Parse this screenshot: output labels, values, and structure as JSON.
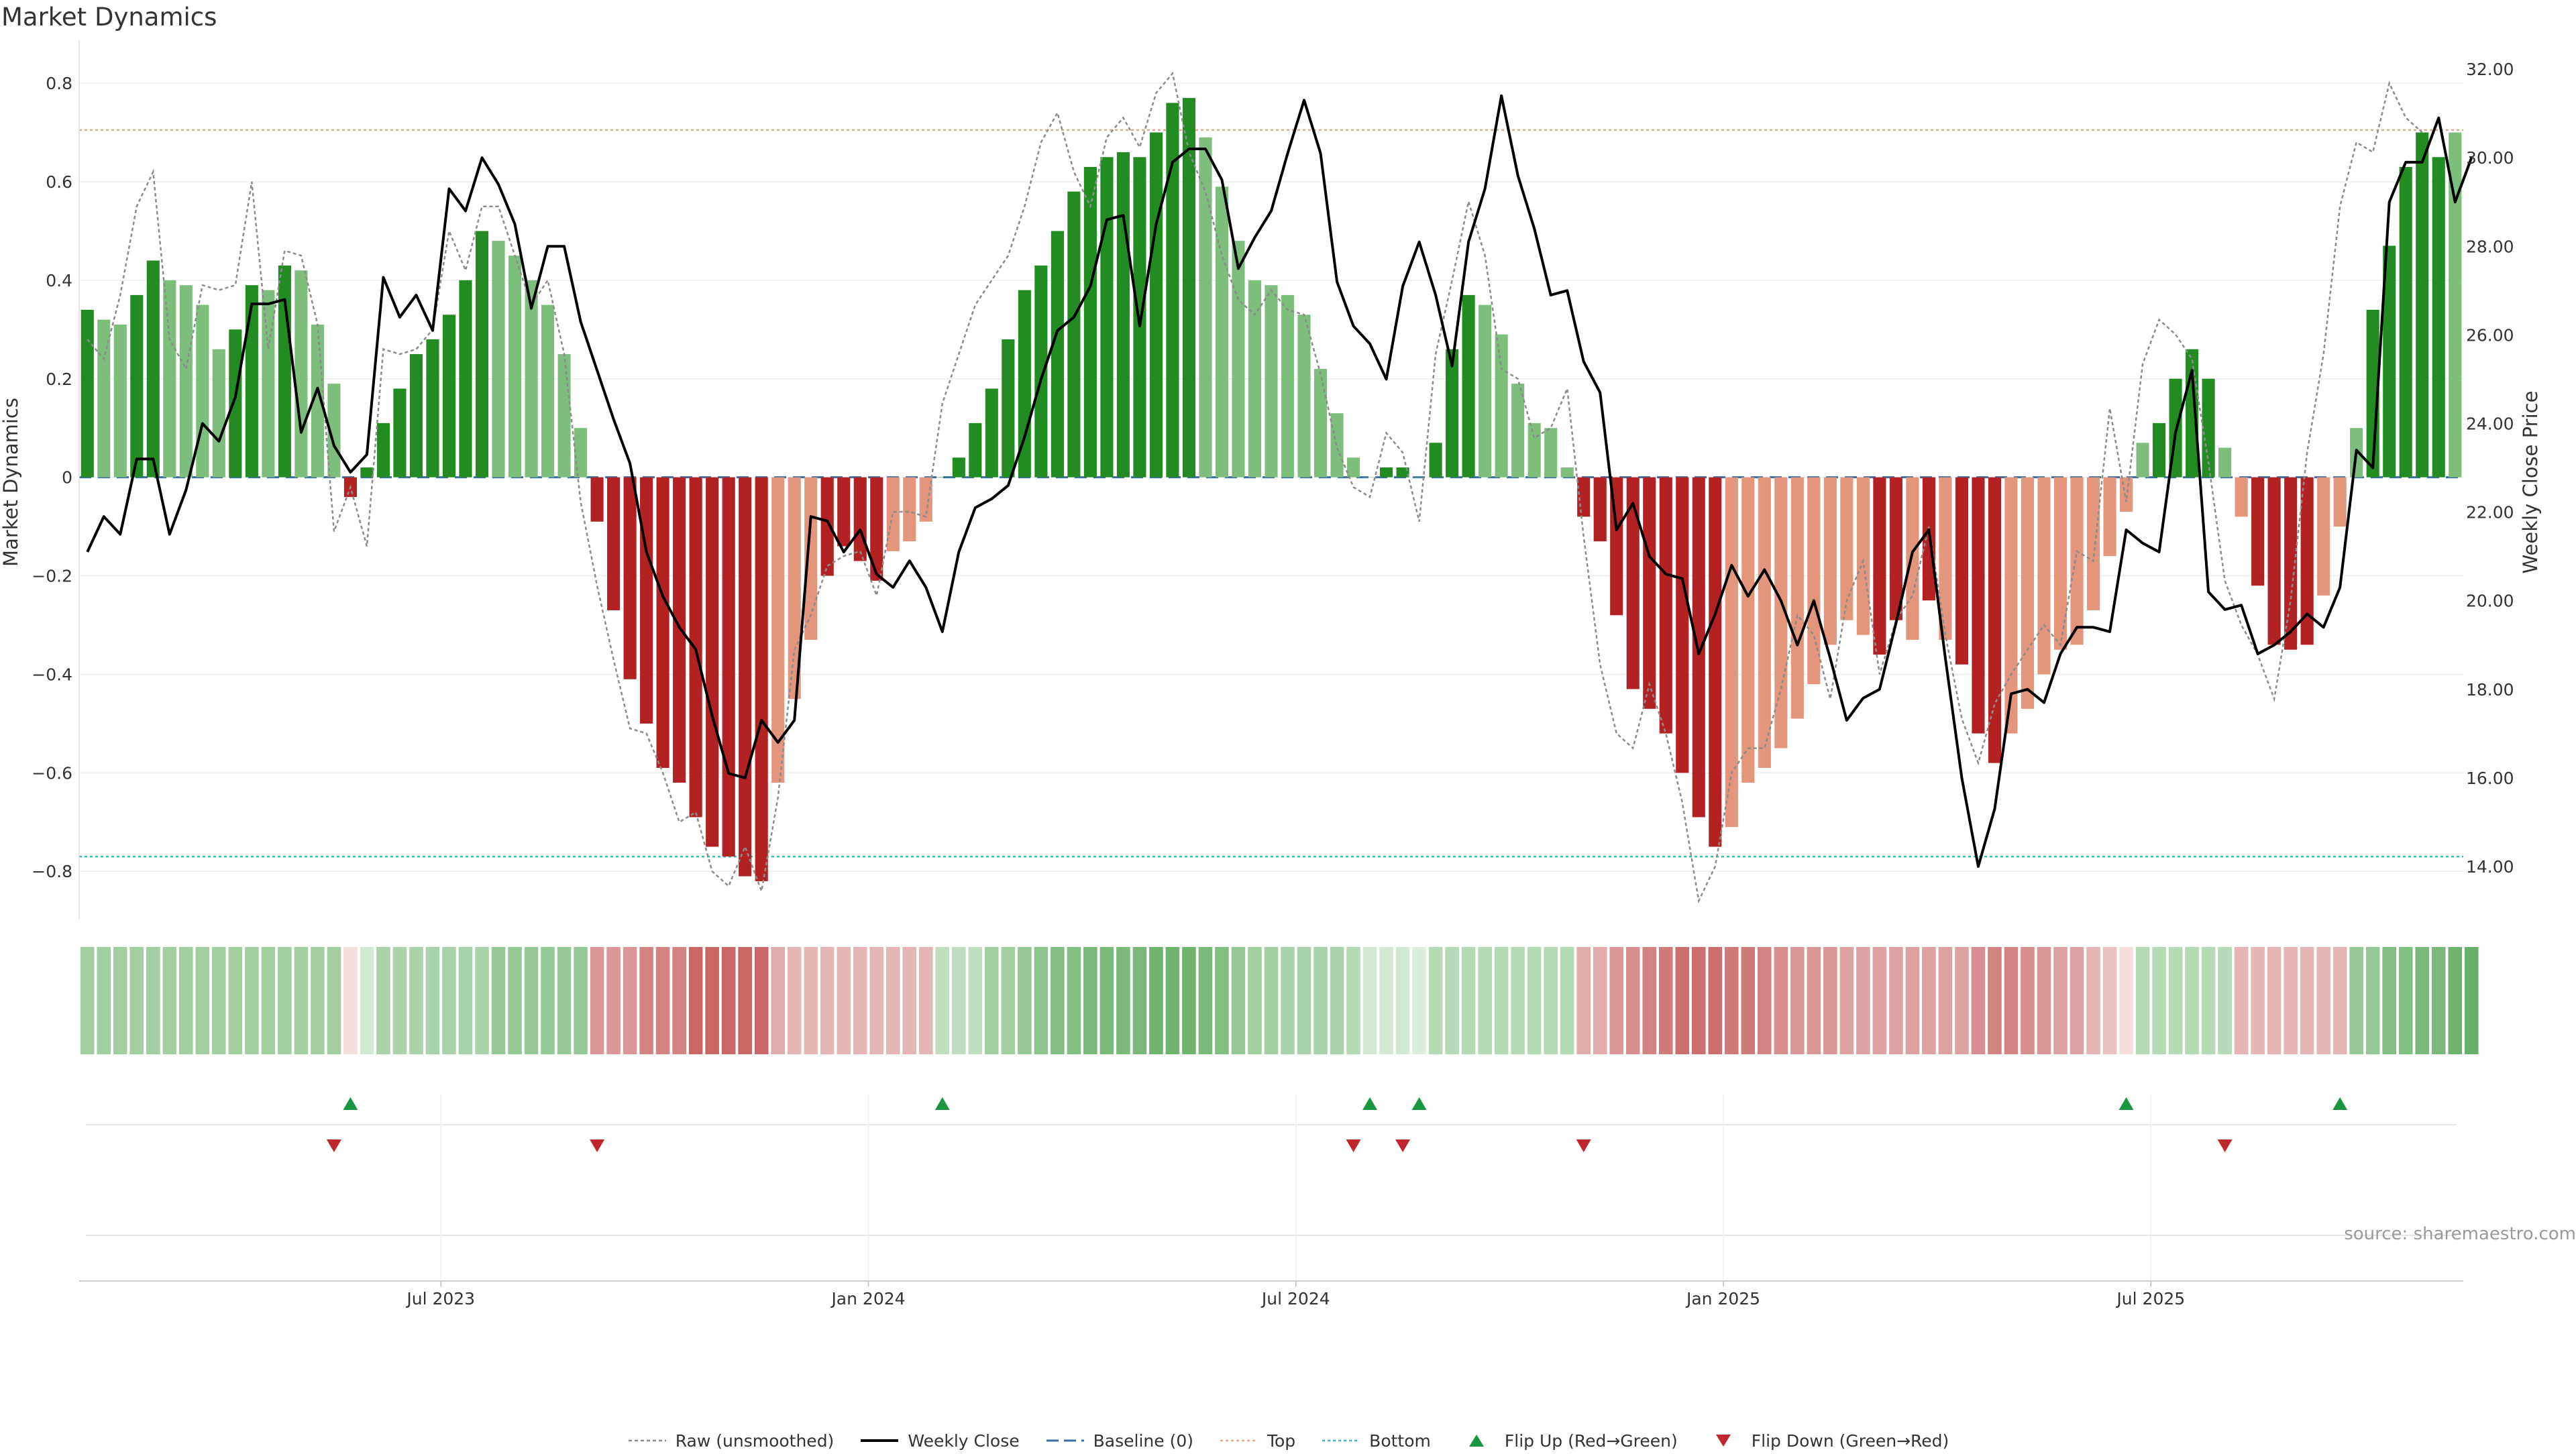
{
  "chart_data": {
    "title": "Market Dynamics",
    "source": "source: sharemaestro.com",
    "type": "bar",
    "y_left": {
      "label": "Market Dynamics",
      "range": [
        -0.88,
        0.86
      ],
      "ticks": [
        {
          "v": 0.8,
          "label": "0.8"
        },
        {
          "v": 0.6,
          "label": "0.6"
        },
        {
          "v": 0.4,
          "label": "0.4"
        },
        {
          "v": 0.2,
          "label": "0.2"
        },
        {
          "v": 0,
          "label": "0"
        },
        {
          "v": -0.2,
          "label": "−0.2"
        },
        {
          "v": -0.4,
          "label": "−0.4"
        },
        {
          "v": -0.6,
          "label": "−0.6"
        },
        {
          "v": -0.8,
          "label": "−0.8"
        }
      ]
    },
    "y_right": {
      "label": "Weekly Close Price",
      "range": [
        13.0,
        32.35
      ],
      "ticks": [
        {
          "v": 32,
          "label": "32.00"
        },
        {
          "v": 30,
          "label": "30.00"
        },
        {
          "v": 28,
          "label": "28.00"
        },
        {
          "v": 26,
          "label": "26.00"
        },
        {
          "v": 24,
          "label": "24.00"
        },
        {
          "v": 22,
          "label": "22.00"
        },
        {
          "v": 20,
          "label": "20.00"
        },
        {
          "v": 18,
          "label": "18.00"
        },
        {
          "v": 16,
          "label": "16.00"
        },
        {
          "v": 14,
          "label": "14.00"
        }
      ]
    },
    "x_ticks": [
      {
        "i": 21.5,
        "label": "Jul 2023"
      },
      {
        "i": 47.5,
        "label": "Jan 2024"
      },
      {
        "i": 73.5,
        "label": "Jul 2024"
      },
      {
        "i": 99.5,
        "label": "Jan 2025"
      },
      {
        "i": 125.5,
        "label": "Jul 2025"
      }
    ],
    "top_line": 0.705,
    "bottom_line": -0.77,
    "baseline": 0,
    "colors": {
      "dark_green": "#228b22",
      "light_green": "#7dbe7d",
      "dark_red": "#b22222",
      "light_red": "#e3967c",
      "raw": "#8c8c8c",
      "close": "#000000",
      "baseline": "#3a6ea5",
      "top": "#e6a98c",
      "bottom": "#39b7cd",
      "flip_up": "#1a9641",
      "flip_down": "#c0272d"
    },
    "bars": [
      0.34,
      0.32,
      0.31,
      0.37,
      0.44,
      0.4,
      0.39,
      0.35,
      0.26,
      0.3,
      0.39,
      0.38,
      0.43,
      0.42,
      0.31,
      0.19,
      -0.04,
      0.02,
      0.11,
      0.18,
      0.25,
      0.28,
      0.33,
      0.4,
      0.5,
      0.48,
      0.45,
      0.4,
      0.35,
      0.25,
      0.1,
      -0.09,
      -0.27,
      -0.41,
      -0.5,
      -0.59,
      -0.62,
      -0.69,
      -0.75,
      -0.77,
      -0.81,
      -0.82,
      -0.62,
      -0.45,
      -0.33,
      -0.2,
      -0.14,
      -0.17,
      -0.21,
      -0.15,
      -0.13,
      -0.09,
      0.0,
      0.04,
      0.11,
      0.18,
      0.28,
      0.38,
      0.43,
      0.5,
      0.58,
      0.63,
      0.65,
      0.66,
      0.65,
      0.7,
      0.76,
      0.77,
      0.69,
      0.59,
      0.48,
      0.4,
      0.39,
      0.37,
      0.33,
      0.22,
      0.13,
      0.04,
      0.0,
      0.02,
      0.02,
      0.0,
      0.07,
      0.26,
      0.37,
      0.35,
      0.29,
      0.19,
      0.11,
      0.1,
      0.02,
      -0.08,
      -0.13,
      -0.28,
      -0.43,
      -0.47,
      -0.52,
      -0.6,
      -0.69,
      -0.75,
      -0.71,
      -0.62,
      -0.59,
      -0.55,
      -0.49,
      -0.42,
      -0.34,
      -0.29,
      -0.32,
      -0.36,
      -0.29,
      -0.33,
      -0.25,
      -0.33,
      -0.38,
      -0.52,
      -0.58,
      -0.52,
      -0.47,
      -0.4,
      -0.35,
      -0.34,
      -0.27,
      -0.16,
      -0.07,
      0.07,
      0.11,
      0.2,
      0.26,
      0.2,
      0.06,
      -0.08,
      -0.22,
      -0.34,
      -0.35,
      -0.34,
      -0.24,
      -0.1,
      0.1,
      0.34,
      0.47,
      0.63,
      0.7,
      0.65,
      0.7
    ],
    "bar_shade": [
      "d",
      "l",
      "l",
      "d",
      "d",
      "l",
      "l",
      "l",
      "l",
      "d",
      "d",
      "l",
      "d",
      "l",
      "l",
      "l",
      "d",
      "d",
      "d",
      "d",
      "d",
      "d",
      "d",
      "d",
      "d",
      "l",
      "l",
      "l",
      "l",
      "l",
      "l",
      "d",
      "d",
      "d",
      "d",
      "d",
      "d",
      "d",
      "d",
      "d",
      "d",
      "d",
      "l",
      "l",
      "l",
      "d",
      "d",
      "d",
      "d",
      "l",
      "l",
      "l",
      "d",
      "d",
      "d",
      "d",
      "d",
      "d",
      "d",
      "d",
      "d",
      "d",
      "d",
      "d",
      "d",
      "d",
      "d",
      "d",
      "l",
      "l",
      "l",
      "l",
      "l",
      "l",
      "l",
      "l",
      "l",
      "l",
      "l",
      "d",
      "d",
      "l",
      "d",
      "d",
      "d",
      "l",
      "l",
      "l",
      "l",
      "l",
      "l",
      "d",
      "d",
      "d",
      "d",
      "d",
      "d",
      "d",
      "d",
      "d",
      "l",
      "l",
      "l",
      "l",
      "l",
      "l",
      "l",
      "l",
      "l",
      "d",
      "d",
      "l",
      "d",
      "l",
      "d",
      "d",
      "d",
      "l",
      "l",
      "l",
      "l",
      "l",
      "l",
      "l",
      "l",
      "l",
      "d",
      "d",
      "d",
      "d",
      "l",
      "l",
      "d",
      "d",
      "d",
      "d",
      "l",
      "l",
      "l",
      "d",
      "d",
      "d",
      "d",
      "d",
      "l",
      "d"
    ],
    "raw": [
      0.28,
      0.24,
      0.37,
      0.55,
      0.62,
      0.28,
      0.22,
      0.39,
      0.38,
      0.39,
      0.6,
      0.26,
      0.46,
      0.45,
      0.31,
      -0.11,
      -0.02,
      -0.14,
      0.26,
      0.25,
      0.26,
      0.3,
      0.5,
      0.42,
      0.55,
      0.55,
      0.45,
      0.35,
      0.4,
      0.25,
      -0.05,
      -0.22,
      -0.37,
      -0.51,
      -0.52,
      -0.6,
      -0.7,
      -0.68,
      -0.8,
      -0.83,
      -0.75,
      -0.84,
      -0.65,
      -0.35,
      -0.28,
      -0.18,
      -0.16,
      -0.15,
      -0.24,
      -0.07,
      -0.07,
      -0.08,
      0.15,
      0.25,
      0.35,
      0.4,
      0.45,
      0.55,
      0.68,
      0.74,
      0.62,
      0.55,
      0.69,
      0.73,
      0.67,
      0.78,
      0.82,
      0.66,
      0.58,
      0.45,
      0.36,
      0.33,
      0.38,
      0.34,
      0.33,
      0.21,
      0.06,
      -0.02,
      -0.04,
      0.09,
      0.05,
      -0.09,
      0.25,
      0.4,
      0.56,
      0.45,
      0.22,
      0.2,
      0.08,
      0.1,
      0.18,
      -0.12,
      -0.38,
      -0.52,
      -0.55,
      -0.42,
      -0.52,
      -0.66,
      -0.86,
      -0.79,
      -0.6,
      -0.55,
      -0.55,
      -0.43,
      -0.28,
      -0.32,
      -0.45,
      -0.25,
      -0.17,
      -0.4,
      -0.29,
      -0.24,
      -0.1,
      -0.32,
      -0.49,
      -0.58,
      -0.46,
      -0.4,
      -0.35,
      -0.3,
      -0.34,
      -0.15,
      -0.17,
      0.14,
      -0.05,
      0.23,
      0.32,
      0.29,
      0.24,
      0.03,
      -0.21,
      -0.3,
      -0.36,
      -0.45,
      -0.25,
      0.05,
      0.25,
      0.55,
      0.68,
      0.66,
      0.8,
      0.73,
      0.7
    ],
    "close": [
      21.1,
      21.9,
      21.5,
      23.2,
      23.2,
      21.5,
      22.5,
      24.0,
      23.6,
      24.6,
      26.7,
      26.7,
      26.8,
      23.8,
      24.8,
      23.5,
      22.9,
      23.3,
      27.3,
      26.4,
      26.9,
      26.1,
      29.3,
      28.8,
      30.0,
      29.4,
      28.5,
      26.6,
      28.0,
      28.0,
      26.3,
      25.2,
      24.1,
      23.1,
      21.1,
      20.1,
      19.4,
      18.9,
      17.4,
      16.1,
      16.0,
      17.3,
      16.8,
      17.3,
      21.9,
      21.8,
      21.1,
      21.6,
      20.6,
      20.3,
      20.9,
      20.3,
      19.3,
      21.1,
      22.1,
      22.3,
      22.6,
      23.7,
      25.0,
      26.1,
      26.4,
      27.1,
      28.6,
      28.7,
      26.2,
      28.5,
      29.9,
      30.2,
      30.2,
      29.5,
      27.5,
      28.2,
      28.8,
      30.1,
      31.3,
      30.1,
      27.2,
      26.2,
      25.8,
      25.0,
      27.1,
      28.1,
      26.9,
      25.3,
      28.1,
      29.3,
      31.4,
      29.6,
      28.4,
      26.9,
      27.0,
      25.4,
      24.7,
      21.6,
      22.2,
      21.0,
      20.6,
      20.5,
      18.8,
      19.7,
      20.8,
      20.1,
      20.7,
      20.0,
      19.0,
      20.0,
      18.7,
      17.3,
      17.8,
      18.0,
      19.5,
      21.1,
      21.6,
      18.7,
      16.0,
      14.0,
      15.3,
      17.9,
      18.0,
      17.7,
      18.8,
      19.4,
      19.4,
      19.3,
      21.6,
      21.3,
      21.1,
      23.8,
      25.2,
      20.2,
      19.8,
      19.9,
      18.8,
      19.0,
      19.3,
      19.7,
      19.4,
      20.3,
      23.4,
      23.0,
      29.0,
      29.9,
      29.9,
      30.9,
      29.0,
      30.0
    ],
    "heat_strip": [
      0.4,
      0.4,
      0.4,
      0.4,
      0.4,
      0.4,
      0.4,
      0.4,
      0.4,
      0.4,
      0.4,
      0.4,
      0.4,
      0.4,
      0.4,
      0.4,
      -0.1,
      0.15,
      0.35,
      0.35,
      0.35,
      0.35,
      0.35,
      0.35,
      0.35,
      0.45,
      0.45,
      0.45,
      0.45,
      0.45,
      0.45,
      -0.45,
      -0.45,
      -0.45,
      -0.55,
      -0.55,
      -0.55,
      -0.7,
      -0.7,
      -0.7,
      -0.7,
      -0.7,
      -0.35,
      -0.3,
      -0.3,
      -0.3,
      -0.3,
      -0.3,
      -0.3,
      -0.3,
      -0.3,
      -0.3,
      0.25,
      0.25,
      0.25,
      0.4,
      0.4,
      0.45,
      0.5,
      0.55,
      0.55,
      0.6,
      0.6,
      0.6,
      0.6,
      0.65,
      0.65,
      0.65,
      0.6,
      0.55,
      0.45,
      0.4,
      0.4,
      0.35,
      0.35,
      0.35,
      0.35,
      0.3,
      0.15,
      0.15,
      0.15,
      0.1,
      0.3,
      0.3,
      0.3,
      0.3,
      0.3,
      0.3,
      0.3,
      0.3,
      0.3,
      -0.35,
      -0.35,
      -0.45,
      -0.5,
      -0.55,
      -0.6,
      -0.65,
      -0.65,
      -0.65,
      -0.6,
      -0.6,
      -0.55,
      -0.5,
      -0.45,
      -0.45,
      -0.45,
      -0.4,
      -0.4,
      -0.4,
      -0.4,
      -0.4,
      -0.4,
      -0.4,
      -0.4,
      -0.5,
      -0.55,
      -0.55,
      -0.5,
      -0.45,
      -0.4,
      -0.4,
      -0.3,
      -0.25,
      -0.1,
      0.3,
      0.3,
      0.3,
      0.3,
      0.3,
      0.3,
      -0.3,
      -0.3,
      -0.3,
      -0.3,
      -0.3,
      -0.3,
      -0.3,
      0.45,
      0.45,
      0.55,
      0.55,
      0.6,
      0.6,
      0.65,
      0.7
    ],
    "flips_up": [
      16,
      52,
      78,
      81,
      124,
      137
    ],
    "flips_down": [
      15,
      31,
      77,
      80,
      91,
      130
    ],
    "legend": [
      {
        "key": "raw",
        "label": "Raw (unsmoothed)"
      },
      {
        "key": "close",
        "label": "Weekly Close"
      },
      {
        "key": "baseline",
        "label": "Baseline (0)"
      },
      {
        "key": "top",
        "label": "Top"
      },
      {
        "key": "bottom",
        "label": "Bottom"
      },
      {
        "key": "flip_up",
        "label": "Flip Up (Red→Green)"
      },
      {
        "key": "flip_down",
        "label": "Flip Down (Green→Red)"
      }
    ]
  }
}
